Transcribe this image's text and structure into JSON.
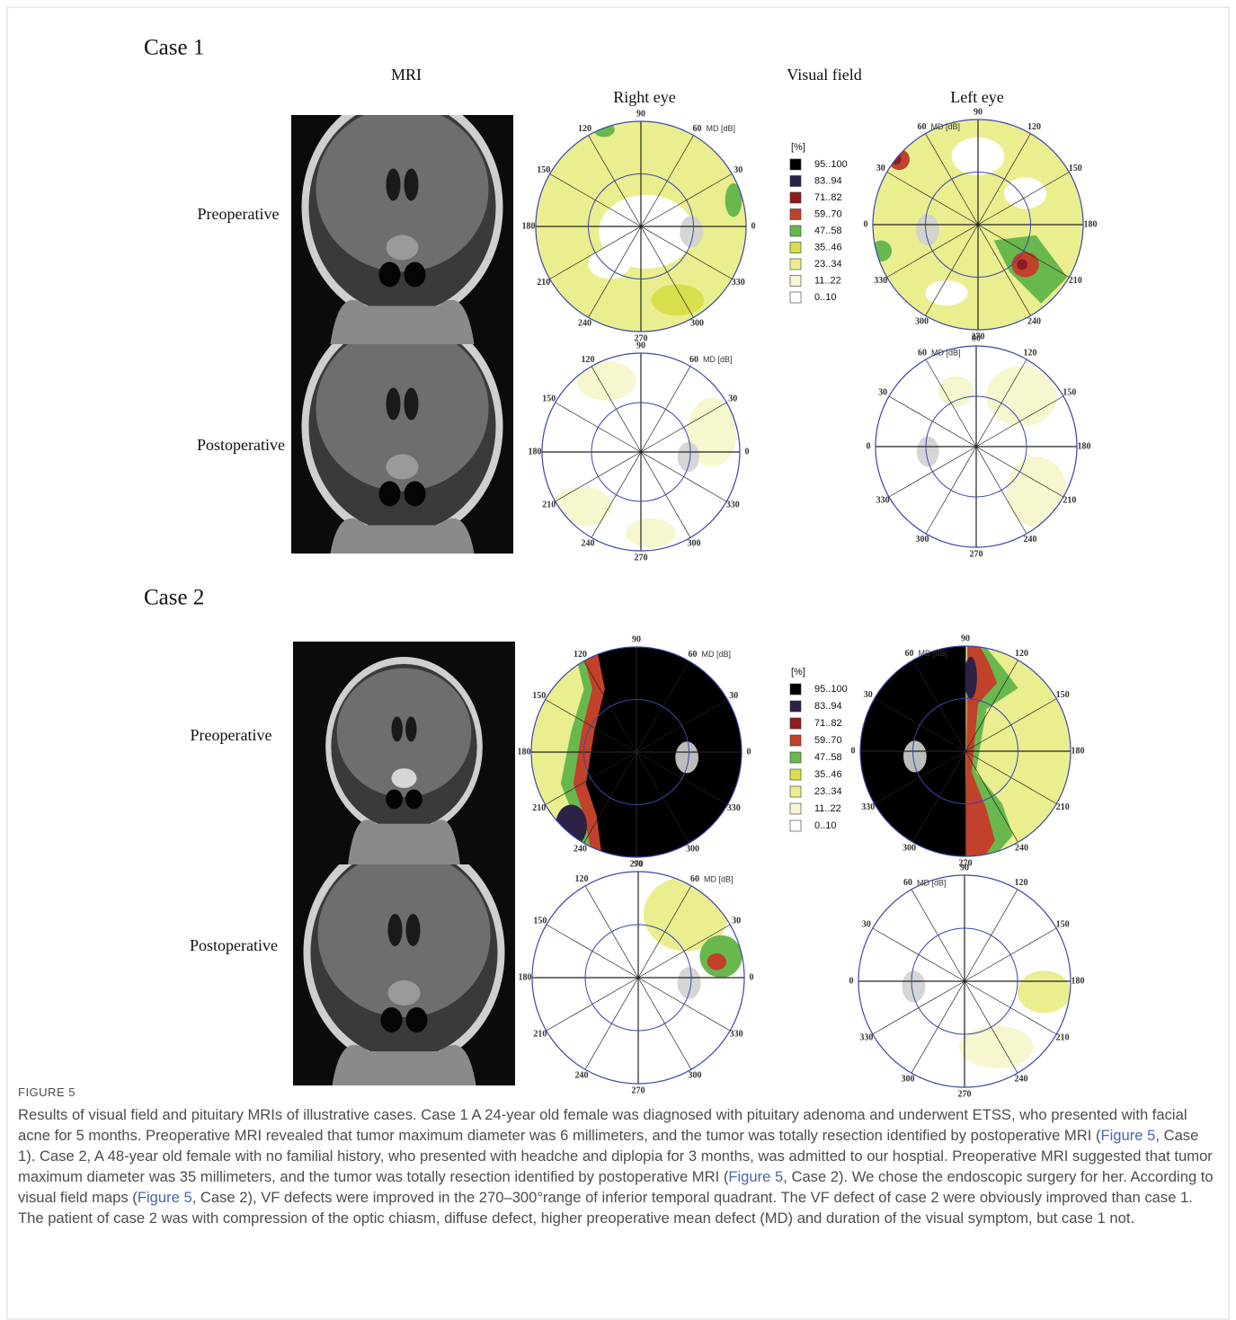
{
  "figure": {
    "cases": [
      {
        "title": "Case 1",
        "headers": {
          "mri": "MRI",
          "visual_field": "Visual field",
          "right_eye": "Right eye",
          "left_eye": "Left eye"
        },
        "rows": [
          "Preoperative",
          "Postoperative"
        ]
      },
      {
        "title": "Case 2",
        "rows": [
          "Preoperative",
          "Postoperative"
        ]
      }
    ],
    "legend": {
      "unit": "[%]",
      "entries": [
        {
          "label": "95..100",
          "color": "#000000"
        },
        {
          "label": "83..94",
          "color": "#2b2245"
        },
        {
          "label": "71..82",
          "color": "#8e1b1f"
        },
        {
          "label": "59..70",
          "color": "#c2412a"
        },
        {
          "label": "47..58",
          "color": "#69b84e"
        },
        {
          "label": "35..46",
          "color": "#d9df4c"
        },
        {
          "label": "23..34",
          "color": "#ebee8f"
        },
        {
          "label": "11..22",
          "color": "#f6f6cf"
        },
        {
          "label": "0..10",
          "color": "#ffffff"
        }
      ]
    },
    "polar": {
      "angle_labels": [
        0,
        30,
        60,
        90,
        120,
        150,
        180,
        210,
        240,
        270,
        300,
        330
      ],
      "md_label": "MD [dB]"
    },
    "caption": {
      "label": "FIGURE 5",
      "segments": [
        {
          "text": "Results of visual field and pituitary MRIs of illustrative cases. Case 1 A 24-year old female was diagnosed with pituitary adenoma and underwent ETSS, who presented with facial acne for 5 months. Preoperative MRI revealed that tumor maximum diameter was 6 millimeters, and the tumor was totally resection identified by postoperative MRI ("
        },
        {
          "text": "Figure 5",
          "link": true
        },
        {
          "text": ", Case 1). Case 2, A 48-year old female with no familial history, who presented with headche and diplopia for 3 months, was admitted to our hosptial. Preoperative MRI suggested that tumor maximum diameter was 35 millimeters, and the tumor was totally resection identified by postoperative MRI ("
        },
        {
          "text": "Figure 5",
          "link": true
        },
        {
          "text": ", Case 2). We chose the endoscopic surgery for her. According to visual field maps ("
        },
        {
          "text": "Figure 5",
          "link": true
        },
        {
          "text": ", Case 2), VF defects were improved in the 270–300°range of inferior temporal quadrant. The VF defect of case 2 were obviously improved than case 1. The patient of case 2 was with compression of the optic chiasm, diffuse defect, higher preoperative mean defect (MD) and duration of the visual symptom, but case 1 not."
        }
      ]
    }
  }
}
